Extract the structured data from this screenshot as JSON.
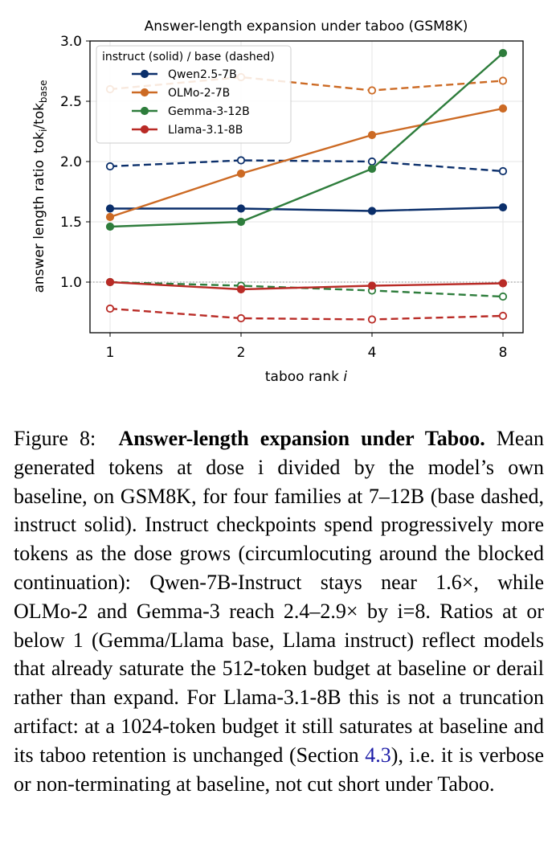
{
  "chart_data": {
    "type": "line",
    "title": "Answer-length expansion under taboo (GSM8K)",
    "xlabel": "taboo rank",
    "xlabel_var": "i",
    "ylabel": "answer length ratio",
    "ylabel_math": {
      "base": "tok",
      "sub1": "i",
      "sep": "/tok",
      "sub2": "base"
    },
    "categories": [
      "1",
      "2",
      "4",
      "8"
    ],
    "ylim": [
      0.58,
      3.0
    ],
    "yticks": [
      "1.0",
      "1.5",
      "2.0",
      "2.5",
      "3.0"
    ],
    "ytick_values": [
      1.0,
      1.5,
      2.0,
      2.5,
      3.0
    ],
    "reference_line": 1.0,
    "grid": true,
    "legend": {
      "title": "instruct (solid) / base (dashed)",
      "placement": "top-left",
      "entries": [
        "Qwen2.5-7B",
        "OLMo-2-7B",
        "Gemma-3-12B",
        "Llama-3.1-8B"
      ]
    },
    "series": [
      {
        "name": "Qwen2.5-7B",
        "variant": "instruct",
        "color": "#0b2f6b",
        "dashed": false,
        "values": [
          1.61,
          1.61,
          1.59,
          1.62
        ]
      },
      {
        "name": "Qwen2.5-7B",
        "variant": "base",
        "color": "#0b2f6b",
        "dashed": true,
        "values": [
          1.96,
          2.01,
          2.0,
          1.92
        ]
      },
      {
        "name": "OLMo-2-7B",
        "variant": "instruct",
        "color": "#cc6a24",
        "dashed": false,
        "values": [
          1.54,
          1.9,
          2.22,
          2.44
        ]
      },
      {
        "name": "OLMo-2-7B",
        "variant": "base",
        "color": "#cc6a24",
        "dashed": true,
        "values": [
          2.6,
          2.7,
          2.59,
          2.67
        ]
      },
      {
        "name": "Gemma-3-12B",
        "variant": "instruct",
        "color": "#2e7d3c",
        "dashed": false,
        "values": [
          1.46,
          1.5,
          1.94,
          2.9
        ]
      },
      {
        "name": "Gemma-3-12B",
        "variant": "base",
        "color": "#2e7d3c",
        "dashed": true,
        "values": [
          1.0,
          0.97,
          0.93,
          0.88
        ]
      },
      {
        "name": "Llama-3.1-8B",
        "variant": "instruct",
        "color": "#b92b26",
        "dashed": false,
        "values": [
          1.0,
          0.94,
          0.97,
          0.99
        ]
      },
      {
        "name": "Llama-3.1-8B",
        "variant": "base",
        "color": "#b92b26",
        "dashed": true,
        "values": [
          0.78,
          0.7,
          0.69,
          0.72
        ]
      }
    ]
  },
  "caption": {
    "label": "Figure 8:",
    "title": "Answer-length expansion under Taboo.",
    "body_before_link": "Mean generated tokens at dose i divided by the model’s own baseline, on GSM8K, for four families at 7–12B (base dashed, instruct solid). Instruct checkpoints spend progressively more tokens as the dose grows (circumlocuting around the blocked continuation): Qwen-7B-Instruct stays near 1.6×, while OLMo-2 and Gemma-3 reach 2.4–2.9× by i=8. Ratios at or below 1 (Gemma/Llama base, Llama instruct) reflect models that already saturate the 512-token budget at baseline or derail rather than expand. For Llama-3.1-8B this is not a truncation artifact: at a 1024-token budget it still saturates at baseline and its taboo retention is unchanged (Section",
    "link": "4.3",
    "body_after_link": "), i.e. it is verbose or non-terminating at baseline, not cut short under Taboo."
  }
}
